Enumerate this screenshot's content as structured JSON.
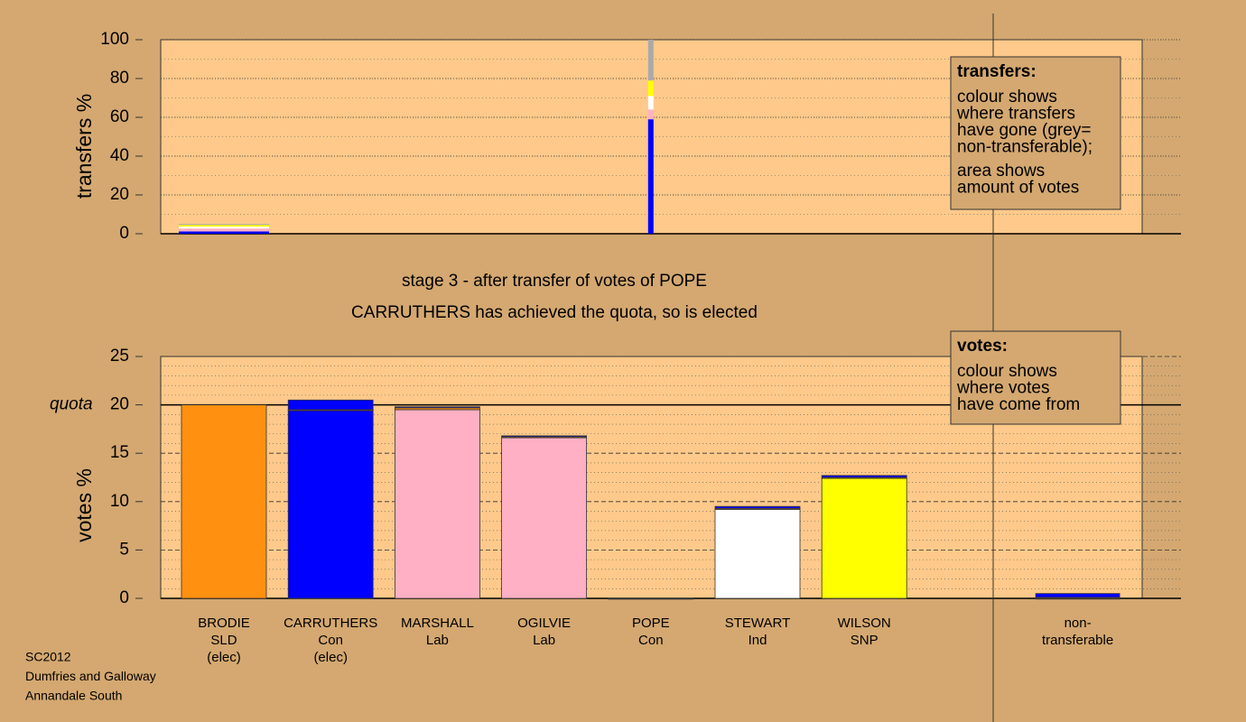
{
  "chart_data": [
    {
      "type": "bar",
      "stacked": true,
      "ylabel": "transfers %",
      "ylim": [
        0,
        100
      ],
      "yticks": [
        0,
        20,
        40,
        60,
        80,
        100
      ],
      "grid": true,
      "series": [
        {
          "color": "#0000ff",
          "values": [
            1.2,
            null,
            null,
            null,
            59,
            null,
            null,
            null
          ]
        },
        {
          "color": "#ffb0c4",
          "values": [
            1.5,
            null,
            null,
            null,
            5,
            null,
            null,
            null
          ]
        },
        {
          "color": "#ffffff",
          "values": [
            1,
            null,
            null,
            null,
            7,
            null,
            null,
            null
          ]
        },
        {
          "color": "#ffff00",
          "values": [
            0.8,
            null,
            null,
            null,
            8,
            null,
            null,
            null
          ]
        },
        {
          "color": "#aaaaaa",
          "values": [
            0.5,
            null,
            null,
            null,
            21,
            null,
            null,
            null
          ]
        }
      ]
    },
    {
      "type": "bar",
      "stacked": true,
      "ylabel": "votes %",
      "title": "stage 3 - after transfer of votes of POPE",
      "subtitle": "CARRUTHERS has achieved the quota, so is elected",
      "categories": [
        [
          "BRODIE",
          "SLD",
          "(elec)"
        ],
        [
          "CARRUTHERS",
          "Con",
          "(elec)"
        ],
        [
          "MARSHALL",
          "Lab"
        ],
        [
          "OGILVIE",
          "Lab"
        ],
        [
          "POPE",
          "Con"
        ],
        [
          "STEWART",
          "Ind"
        ],
        [
          "WILSON",
          "SNP"
        ],
        [
          "non-",
          "transferable"
        ]
      ],
      "ylim": [
        0,
        25
      ],
      "yticks": [
        0,
        5,
        10,
        15,
        20,
        25
      ],
      "grid": true,
      "quota": {
        "value": 20,
        "label": "quota"
      },
      "series": [
        {
          "colors": [
            "#ff9010",
            "#0000ff",
            "#ffb0c4",
            "#ffb0c4",
            "#0000ff",
            "#ffffff",
            "#ffff00",
            "#aaaaaa"
          ],
          "values": [
            20.0,
            19.4,
            19.5,
            16.6,
            0,
            9.2,
            12.4,
            0
          ]
        },
        {
          "color": "#ff9010",
          "values": [
            null,
            0.1,
            0.2,
            0.1,
            0,
            0.1,
            0.1,
            0.1
          ]
        },
        {
          "color": "#0000ff",
          "values": [
            null,
            1.0,
            0.1,
            0.1,
            null,
            0.2,
            0.2,
            0.4
          ]
        }
      ]
    }
  ],
  "boxes": [
    {
      "heading": "transfers:",
      "paragraphs": [
        [
          "colour shows",
          "where transfers",
          "have gone (grey=",
          "non-transferable);"
        ],
        [
          "area shows",
          "amount of votes"
        ]
      ]
    },
    {
      "heading": "votes:",
      "paragraphs": [
        [
          "colour shows",
          "where votes",
          "have come from"
        ]
      ]
    }
  ],
  "footer": [
    "SC2012",
    "Dumfries and Galloway",
    "Annandale South"
  ]
}
